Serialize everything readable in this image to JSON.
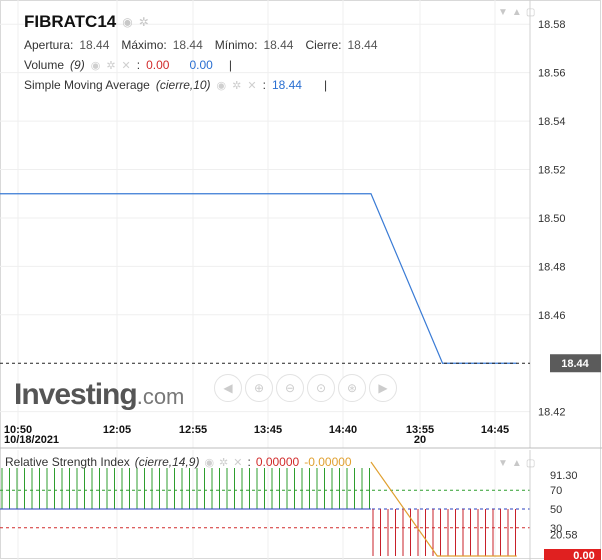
{
  "header": {
    "symbol": "FIBRATC14",
    "ohlc": [
      {
        "label": "Apertura:",
        "value": "18.44"
      },
      {
        "label": "Máximo:",
        "value": "18.44"
      },
      {
        "label": "Mínimo:",
        "value": "18.44"
      },
      {
        "label": "Cierre:",
        "value": "18.44"
      }
    ],
    "volume": {
      "label": "Volume",
      "params": "(9)",
      "sep": ":",
      "value1": "0.00",
      "value2": "0.00"
    },
    "sma": {
      "label": "Simple Moving Average",
      "params": "(cierre,10)",
      "sep": ":",
      "value": "18.44"
    }
  },
  "watermark": {
    "brand": "Investing",
    "suffix": ".com"
  },
  "rsi": {
    "label": "Relative Strength Index",
    "params": "(cierre,14,9)",
    "sep": ":",
    "value1": "0.00000",
    "value2": "-0.00000"
  },
  "chart_data": [
    {
      "type": "line",
      "x_ticks": [
        "10:50",
        "12:05",
        "12:55",
        "13:45",
        "14:40",
        "13:55",
        "14:45"
      ],
      "x_date_labels": [
        {
          "tick": "10:50",
          "text": "10/18/2021"
        },
        {
          "tick": "13:55",
          "text": "20"
        }
      ],
      "y_ticks": [
        "18.58",
        "18.56",
        "18.54",
        "18.52",
        "18.50",
        "18.48",
        "18.46",
        "18.42"
      ],
      "ylim": [
        18.405,
        18.59
      ],
      "price_label": "18.44",
      "last_price": 18.44,
      "series": [
        {
          "points": [
            [
              0,
              18.51
            ],
            [
              0.7,
              18.51
            ],
            [
              0.835,
              18.44
            ],
            [
              0.975,
              18.44
            ]
          ]
        }
      ]
    },
    {
      "type": "line",
      "y_ticks": [
        "91.30",
        "70",
        "50",
        "30",
        "20.58"
      ],
      "ylim": [
        0,
        100
      ],
      "levels": [
        70,
        50,
        30
      ],
      "value_label": "0.00",
      "series": [
        {
          "points": [
            [
              0,
              100
            ],
            [
              0.7,
              100
            ]
          ]
        },
        {
          "points": [
            [
              0,
              50
            ],
            [
              0.7,
              50
            ]
          ]
        },
        {
          "points": [
            [
              0.7,
              100
            ],
            [
              0.825,
              0
            ],
            [
              0.975,
              0
            ]
          ]
        }
      ]
    }
  ]
}
